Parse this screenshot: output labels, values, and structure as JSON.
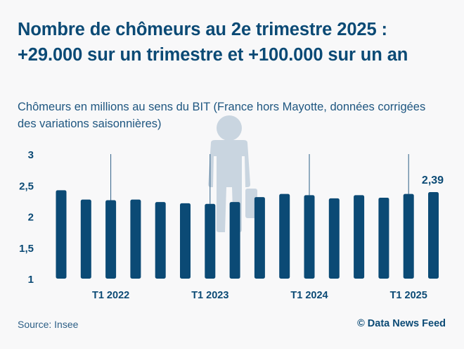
{
  "title": "Nombre de chômeurs au 2e trimestre 2025 : +29.000 sur un trimestre et +100.000 sur un an",
  "subtitle": "Chômeurs en millions au sens du BIT (France hors Mayotte, données corrigées des variations saisonnières)",
  "source": "Source: Insee",
  "credit": "© Data News Feed",
  "colors": {
    "bar": "#0b4a75",
    "text": "#0b4a75",
    "background": "#f8f8f9",
    "illustration": "#c9d5e0"
  },
  "illustration": "businessman-with-briefcase-icon",
  "chart_data": {
    "type": "bar",
    "title": "",
    "xlabel": "",
    "ylabel": "",
    "ylim": [
      1,
      3
    ],
    "yticks": [
      "1",
      "1,5",
      "2",
      "2,5",
      "3"
    ],
    "grid": "vertical lines at T1 labels",
    "categories": [
      "",
      "",
      "T1 2022",
      "",
      "",
      "",
      "T1 2023",
      "",
      "",
      "",
      "T1 2024",
      "",
      "",
      "",
      "T1 2025",
      ""
    ],
    "values": [
      2.42,
      2.27,
      2.26,
      2.27,
      2.23,
      2.21,
      2.2,
      2.23,
      2.31,
      2.36,
      2.34,
      2.29,
      2.34,
      2.3,
      2.36,
      2.39
    ],
    "data_labels": [
      {
        "index": 15,
        "text": "2,39"
      }
    ]
  }
}
